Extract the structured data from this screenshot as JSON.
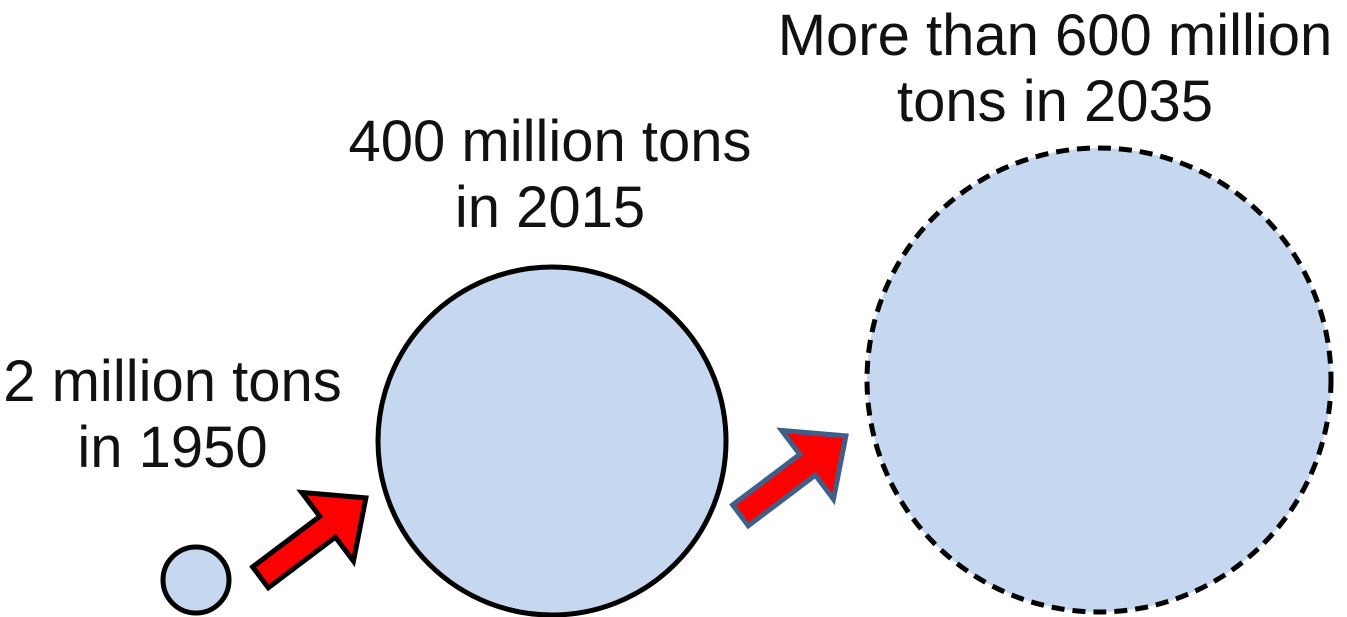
{
  "diagram": {
    "nodes": [
      {
        "id": "1950",
        "label_line1": "2 million tons",
        "label_line2": "in 1950",
        "amount_million_tons": 2,
        "year": 1950,
        "projected": false
      },
      {
        "id": "2015",
        "label_line1": "400 million tons",
        "label_line2": "in 2015",
        "amount_million_tons": 400,
        "year": 2015,
        "projected": false
      },
      {
        "id": "2035",
        "label_line1": "More than 600 million",
        "label_line2": "tons in 2035",
        "amount_million_tons": 600,
        "year": 2035,
        "projected": true
      }
    ],
    "colors": {
      "circle_fill": "#c6d8f0",
      "circle_stroke": "#000000",
      "arrow_fill": "#ff0000",
      "arrow1_stroke": "#000000",
      "arrow2_stroke": "#3f5f8a"
    },
    "icons": {
      "arrow": "right-up-arrow-icon"
    }
  }
}
